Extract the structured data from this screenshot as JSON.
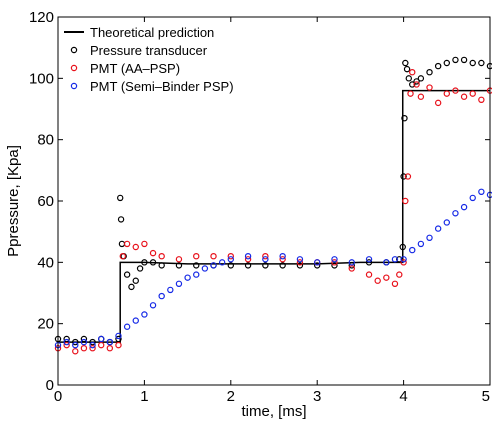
{
  "chart_data": {
    "type": "line",
    "xlabel": "time, [ms]",
    "ylabel": "Ppressure, [Kpa]",
    "xlim": [
      0,
      5
    ],
    "ylim": [
      0,
      120
    ],
    "xticks": [
      "0",
      "1",
      "2",
      "3",
      "4",
      "5"
    ],
    "yticks": [
      "0",
      "20",
      "40",
      "60",
      "80",
      "100",
      "120"
    ],
    "legend_position": "top-left",
    "series": [
      {
        "name": "Theoretical prediction",
        "style": "line",
        "color": "#000000",
        "x": [
          0,
          0.72,
          0.72,
          1.0,
          1.5,
          2.0,
          2.5,
          3.0,
          3.5,
          3.99,
          3.99,
          4.2,
          4.6,
          5.0
        ],
        "y": [
          14,
          14,
          40,
          40,
          39.5,
          39.5,
          39.5,
          39.5,
          40,
          40,
          96,
          96,
          96,
          96
        ]
      },
      {
        "name": "Pressure transducer",
        "style": "markers",
        "color": "#000000",
        "x": [
          0.0,
          0.1,
          0.2,
          0.3,
          0.4,
          0.5,
          0.6,
          0.7,
          0.72,
          0.73,
          0.74,
          0.76,
          0.8,
          0.85,
          0.9,
          0.95,
          1.0,
          1.1,
          1.2,
          1.4,
          1.6,
          1.8,
          2.0,
          2.2,
          2.4,
          2.6,
          2.8,
          3.0,
          3.2,
          3.4,
          3.6,
          3.8,
          3.95,
          3.99,
          4.0,
          4.01,
          4.02,
          4.04,
          4.06,
          4.1,
          4.15,
          4.2,
          4.3,
          4.4,
          4.5,
          4.6,
          4.7,
          4.8,
          4.9,
          5.0
        ],
        "y": [
          15,
          15,
          14,
          15,
          14,
          15,
          14,
          15,
          61,
          54,
          46,
          42,
          36,
          32,
          34,
          38,
          40,
          40,
          39,
          39,
          39,
          39,
          39,
          39,
          39,
          39,
          39,
          39,
          39,
          39,
          40,
          40,
          41,
          45,
          68,
          87,
          105,
          103,
          100,
          98,
          99,
          100,
          102,
          104,
          105,
          106,
          106,
          105,
          105,
          104
        ]
      },
      {
        "name": "PMT (AA–PSP)",
        "style": "markers",
        "color": "#e8101a",
        "x": [
          0.0,
          0.1,
          0.2,
          0.3,
          0.4,
          0.5,
          0.6,
          0.7,
          0.75,
          0.8,
          0.9,
          1.0,
          1.1,
          1.2,
          1.4,
          1.6,
          1.8,
          2.0,
          2.2,
          2.4,
          2.6,
          2.8,
          3.0,
          3.2,
          3.4,
          3.6,
          3.7,
          3.8,
          3.9,
          3.95,
          4.0,
          4.02,
          4.05,
          4.08,
          4.1,
          4.15,
          4.2,
          4.3,
          4.4,
          4.5,
          4.6,
          4.7,
          4.8,
          4.9,
          5.0
        ],
        "y": [
          12,
          13,
          11,
          12,
          12,
          13,
          12,
          13,
          42,
          46,
          45,
          46,
          43,
          42,
          41,
          42,
          42,
          42,
          41,
          42,
          41,
          40,
          40,
          40,
          38,
          36,
          34,
          35,
          33,
          36,
          40,
          60,
          68,
          95,
          102,
          98,
          94,
          97,
          92,
          95,
          96,
          94,
          95,
          93,
          96
        ]
      },
      {
        "name": "PMT (Semi–Binder PSP)",
        "style": "markers",
        "color": "#1428e6",
        "x": [
          0.0,
          0.1,
          0.2,
          0.3,
          0.4,
          0.5,
          0.6,
          0.7,
          0.8,
          0.9,
          1.0,
          1.1,
          1.2,
          1.3,
          1.4,
          1.5,
          1.6,
          1.7,
          1.8,
          1.9,
          2.0,
          2.2,
          2.4,
          2.6,
          2.8,
          3.0,
          3.2,
          3.4,
          3.6,
          3.8,
          3.9,
          4.0,
          4.1,
          4.2,
          4.3,
          4.4,
          4.5,
          4.6,
          4.7,
          4.8,
          4.9,
          5.0
        ],
        "y": [
          13,
          14,
          13,
          14,
          13,
          15,
          14,
          16,
          19,
          21,
          23,
          26,
          29,
          31,
          33,
          35,
          36,
          38,
          39,
          40,
          41,
          42,
          41,
          42,
          41,
          40,
          41,
          40,
          41,
          40,
          41,
          41,
          44,
          46,
          48,
          51,
          53,
          56,
          58,
          61,
          63,
          62
        ]
      }
    ]
  }
}
